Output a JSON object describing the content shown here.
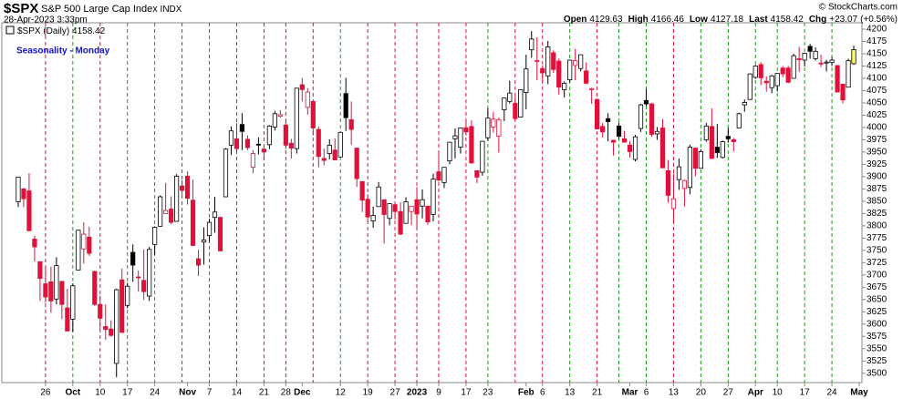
{
  "chart_data": {
    "type": "candlestick",
    "symbol": "$SPX",
    "name": "S&P 500 Large Cap Index",
    "exchange": "INDX",
    "date": "28-Apr-2023 3:33pm",
    "watermark": "© StockCharts.com",
    "title": "Seasonality - Monday",
    "legend": "$SPX (Daily)",
    "ohlc_labels": [
      "Open",
      "High",
      "Low",
      "Last"
    ],
    "change_label": "Chg",
    "change": "+23.07",
    "change_pct": "(+0.56%)",
    "up_color": "#000000",
    "down_color": "#e0103a",
    "highlight_color": "#ffff66",
    "ylim": [
      3481,
      4213
    ],
    "yticks": [
      3500,
      3525,
      3550,
      3575,
      3600,
      3625,
      3650,
      3675,
      3700,
      3725,
      3750,
      3775,
      3800,
      3825,
      3850,
      3875,
      3900,
      3925,
      3950,
      3975,
      4000,
      4025,
      4050,
      4075,
      4100,
      4125,
      4150,
      4175,
      4200
    ],
    "xlim": [
      -3,
      154.5
    ],
    "xticks": [
      {
        "value": 5,
        "label": "26"
      },
      {
        "value": 10,
        "label": "Oct"
      },
      {
        "value": 15,
        "label": "10"
      },
      {
        "value": 20,
        "label": "17"
      },
      {
        "value": 25,
        "label": "24"
      },
      {
        "value": 31,
        "label": "Nov"
      },
      {
        "value": 35,
        "label": "7"
      },
      {
        "value": 40,
        "label": "14"
      },
      {
        "value": 45,
        "label": "21"
      },
      {
        "value": 49,
        "label": "28"
      },
      {
        "value": 52,
        "label": "Dec"
      },
      {
        "value": 59,
        "label": "12"
      },
      {
        "value": 64,
        "label": "19"
      },
      {
        "value": 69,
        "label": "27"
      },
      {
        "value": 73,
        "label": "2023"
      },
      {
        "value": 77,
        "label": "9"
      },
      {
        "value": 82,
        "label": "17"
      },
      {
        "value": 86,
        "label": "23"
      },
      {
        "value": 93,
        "label": "Feb"
      },
      {
        "value": 96,
        "label": "6"
      },
      {
        "value": 101,
        "label": "13"
      },
      {
        "value": 106,
        "label": "21"
      },
      {
        "value": 112,
        "label": "Mar"
      },
      {
        "value": 115,
        "label": "6"
      },
      {
        "value": 120,
        "label": "13"
      },
      {
        "value": 125,
        "label": "20"
      },
      {
        "value": 130,
        "label": "27"
      },
      {
        "value": 135,
        "label": "Apr"
      },
      {
        "value": 139,
        "label": "10"
      },
      {
        "value": 144,
        "label": "17"
      },
      {
        "value": 149,
        "label": "24"
      },
      {
        "value": 154,
        "label": "May"
      }
    ],
    "monday_lines": [
      {
        "value": 5,
        "color": "#e0103a"
      },
      {
        "value": 10,
        "color": "#1a9a1a"
      },
      {
        "value": 15,
        "color": "#e0103a"
      },
      {
        "value": 20,
        "color": "#1a9a1a"
      },
      {
        "value": 25,
        "color": "#1a9a1a"
      },
      {
        "value": 30,
        "color": "#e0103a"
      },
      {
        "value": 35,
        "color": "#1a9a1a"
      },
      {
        "value": 40,
        "color": "#e0103a"
      },
      {
        "value": 45,
        "color": "#e0103a"
      },
      {
        "value": 49,
        "color": "#e0103a"
      },
      {
        "value": 54,
        "color": "#e0103a"
      },
      {
        "value": 59,
        "color": "#1a9a1a"
      },
      {
        "value": 64,
        "color": "#e0103a"
      },
      {
        "value": 69,
        "color": "#e0103a"
      },
      {
        "value": 73,
        "color": "#e0103a"
      },
      {
        "value": 77,
        "color": "#e0103a"
      },
      {
        "value": 82,
        "color": "#e0103a"
      },
      {
        "value": 86,
        "color": "#1a9a1a"
      },
      {
        "value": 91,
        "color": "#e0103a"
      },
      {
        "value": 96,
        "color": "#e0103a"
      },
      {
        "value": 101,
        "color": "#1a9a1a"
      },
      {
        "value": 106,
        "color": "#e0103a"
      },
      {
        "value": 110,
        "color": "#1a9a1a"
      },
      {
        "value": 115,
        "color": "#1a9a1a"
      },
      {
        "value": 120,
        "color": "#e0103a"
      },
      {
        "value": 125,
        "color": "#1a9a1a"
      },
      {
        "value": 130,
        "color": "#1a9a1a"
      },
      {
        "value": 135,
        "color": "#1a9a1a"
      },
      {
        "value": 139,
        "color": "#1a9a1a"
      },
      {
        "value": 144,
        "color": "#1a9a1a"
      },
      {
        "value": 149,
        "color": "#1a9a1a"
      }
    ],
    "candles": [
      [
        3849,
        3900,
        3838,
        3899
      ],
      [
        3875,
        3877,
        3838,
        3855
      ],
      [
        3871,
        3907,
        3789,
        3790
      ],
      [
        3773,
        3780,
        3727,
        3757
      ],
      [
        3727,
        3727,
        3647,
        3693
      ],
      [
        3682,
        3715,
        3644,
        3655
      ],
      [
        3686,
        3717,
        3623,
        3647
      ],
      [
        3651,
        3736,
        3640,
        3719
      ],
      [
        3687,
        3687,
        3610,
        3640
      ],
      [
        3633,
        3672,
        3585,
        3586
      ],
      [
        3610,
        3683,
        3584,
        3678
      ],
      [
        3710,
        3792,
        3710,
        3791
      ],
      [
        3753,
        3807,
        3723,
        3783
      ],
      [
        3777,
        3798,
        3739,
        3744
      ],
      [
        3707,
        3709,
        3637,
        3640
      ],
      [
        3640,
        3658,
        3589,
        3612
      ],
      [
        3595,
        3640,
        3568,
        3589
      ],
      [
        3590,
        3608,
        3574,
        3577
      ],
      [
        3520,
        3672,
        3492,
        3670
      ],
      [
        3690,
        3713,
        3583,
        3583
      ],
      [
        3638,
        3684,
        3632,
        3677
      ],
      [
        3746,
        3762,
        3686,
        3720
      ],
      [
        3696,
        3709,
        3666,
        3695
      ],
      [
        3689,
        3752,
        3649,
        3666
      ],
      [
        3657,
        3757,
        3647,
        3752
      ],
      [
        3762,
        3799,
        3741,
        3797
      ],
      [
        3799,
        3862,
        3799,
        3859
      ],
      [
        3825,
        3887,
        3826,
        3831
      ],
      [
        3834,
        3860,
        3803,
        3807
      ],
      [
        3809,
        3905,
        3808,
        3901
      ],
      [
        3881,
        3893,
        3863,
        3872
      ],
      [
        3901,
        3911,
        3843,
        3856
      ],
      [
        3852,
        3894,
        3759,
        3760
      ],
      [
        3733,
        3751,
        3698,
        3720
      ],
      [
        3767,
        3797,
        3721,
        3771
      ],
      [
        3780,
        3814,
        3767,
        3807
      ],
      [
        3817,
        3859,
        3786,
        3828
      ],
      [
        3817,
        3819,
        3748,
        3749
      ],
      [
        3859,
        3958,
        3859,
        3956
      ],
      [
        3964,
        4002,
        3944,
        3993
      ],
      [
        3977,
        4009,
        3946,
        3957
      ],
      [
        4006,
        4029,
        3954,
        3992
      ],
      [
        3976,
        3984,
        3954,
        3959
      ],
      [
        3919,
        3954,
        3907,
        3947
      ],
      [
        3966,
        3980,
        3945,
        3965
      ],
      [
        3956,
        3962,
        3933,
        3950
      ],
      [
        3965,
        4005,
        3956,
        4003
      ],
      [
        4001,
        4034,
        3994,
        4028
      ],
      [
        4023,
        4035,
        4020,
        4026
      ],
      [
        4005,
        4012,
        3956,
        3964
      ],
      [
        3968,
        3977,
        3937,
        3958
      ],
      [
        3957,
        4080,
        3947,
        4080
      ],
      [
        4087,
        4101,
        4053,
        4077
      ],
      [
        4041,
        4080,
        4026,
        4072
      ],
      [
        4053,
        4053,
        3984,
        3999
      ],
      [
        3996,
        4002,
        3919,
        3941
      ],
      [
        3937,
        3957,
        3923,
        3933
      ],
      [
        3947,
        3976,
        3935,
        3964
      ],
      [
        3954,
        3978,
        3933,
        3934
      ],
      [
        3940,
        3991,
        3939,
        3990
      ],
      [
        4069,
        4101,
        3993,
        4020
      ],
      [
        4016,
        4053,
        3965,
        3996
      ],
      [
        3958,
        3959,
        3879,
        3896
      ],
      [
        3890,
        3890,
        3828,
        3852
      ],
      [
        3854,
        3864,
        3807,
        3818
      ],
      [
        3810,
        3839,
        3796,
        3821
      ],
      [
        3839,
        3889,
        3839,
        3879
      ],
      [
        3853,
        3853,
        3764,
        3823
      ],
      [
        3815,
        3846,
        3801,
        3845
      ],
      [
        3843,
        3846,
        3813,
        3829
      ],
      [
        3829,
        3848,
        3781,
        3783
      ],
      [
        3805,
        3858,
        3805,
        3849
      ],
      [
        3829,
        3840,
        3801,
        3840
      ],
      [
        3853,
        3879,
        3795,
        3824
      ],
      [
        3840,
        3874,
        3815,
        3853
      ],
      [
        3840,
        3840,
        3802,
        3808
      ],
      [
        3823,
        3906,
        3809,
        3895
      ],
      [
        3910,
        3950,
        3890,
        3893
      ],
      [
        3888,
        3919,
        3877,
        3919
      ],
      [
        3932,
        3970,
        3925,
        3970
      ],
      [
        3977,
        3998,
        3937,
        3983
      ],
      [
        3960,
        4000,
        3947,
        3999
      ],
      [
        3999,
        4015,
        3984,
        3991
      ],
      [
        4002,
        4015,
        3926,
        3928
      ],
      [
        3912,
        3913,
        3887,
        3899
      ],
      [
        3909,
        3972,
        3902,
        3972
      ],
      [
        3979,
        4039,
        3973,
        4019
      ],
      [
        4001,
        4032,
        3990,
        4017
      ],
      [
        3982,
        4020,
        3949,
        4016
      ],
      [
        4036,
        4061,
        4013,
        4060
      ],
      [
        4053,
        4095,
        4049,
        4070
      ],
      [
        4049,
        4063,
        4015,
        4018
      ],
      [
        4021,
        4077,
        4021,
        4077
      ],
      [
        4071,
        4148,
        4037,
        4119
      ],
      [
        4158,
        4196,
        4142,
        4180
      ],
      [
        4136,
        4183,
        4096,
        4136
      ],
      [
        4120,
        4126,
        4093,
        4111
      ],
      [
        4105,
        4176,
        4088,
        4164
      ],
      [
        4152,
        4157,
        4111,
        4118
      ],
      [
        4135,
        4140,
        4067,
        4082
      ],
      [
        4077,
        4094,
        4061,
        4090
      ],
      [
        4097,
        4138,
        4092,
        4137
      ],
      [
        4126,
        4160,
        4096,
        4136
      ],
      [
        4120,
        4148,
        4114,
        4148
      ],
      [
        4115,
        4132,
        4088,
        4090
      ],
      [
        4077,
        4081,
        4048,
        4079
      ],
      [
        4057,
        4059,
        3997,
        3997
      ],
      [
        4002,
        4009,
        3980,
        3991
      ],
      [
        4018,
        4029,
        3972,
        4012
      ],
      [
        3974,
        3975,
        3943,
        3970
      ],
      [
        4003,
        4010,
        3977,
        3982
      ],
      [
        3977,
        3993,
        3970,
        3970
      ],
      [
        3964,
        3972,
        3939,
        3951
      ],
      [
        3935,
        3985,
        3931,
        3981
      ],
      [
        3998,
        4048,
        3991,
        4046
      ],
      [
        4055,
        4079,
        4044,
        4048
      ],
      [
        4048,
        4050,
        3981,
        3986
      ],
      [
        3987,
        4001,
        3975,
        3992
      ],
      [
        3999,
        4017,
        3917,
        3918
      ],
      [
        3912,
        3934,
        3847,
        3862
      ],
      [
        3835,
        3906,
        3809,
        3855
      ],
      [
        3894,
        3937,
        3873,
        3920
      ],
      [
        3876,
        3894,
        3839,
        3892
      ],
      [
        3878,
        3965,
        3864,
        3960
      ],
      [
        3958,
        3959,
        3901,
        3917
      ],
      [
        3917,
        3956,
        3917,
        3951
      ],
      [
        3975,
        4009,
        3971,
        4003
      ],
      [
        4002,
        4039,
        3936,
        3937
      ],
      [
        3960,
        4007,
        3938,
        3949
      ],
      [
        3939,
        3973,
        3937,
        3971
      ],
      [
        3982,
        3999,
        3969,
        3977
      ],
      [
        3975,
        3979,
        3951,
        3971
      ],
      [
        3999,
        4030,
        3999,
        4028
      ],
      [
        4046,
        4057,
        4032,
        4051
      ],
      [
        4057,
        4110,
        4056,
        4109
      ],
      [
        4102,
        4127,
        4099,
        4125
      ],
      [
        4128,
        4133,
        4086,
        4101
      ],
      [
        4094,
        4104,
        4073,
        4091
      ],
      [
        4081,
        4107,
        4070,
        4105
      ],
      [
        4085,
        4110,
        4073,
        4110
      ],
      [
        4121,
        4125,
        4102,
        4109
      ],
      [
        4121,
        4125,
        4090,
        4092
      ],
      [
        4100,
        4150,
        4100,
        4146
      ],
      [
        4140,
        4164,
        4113,
        4138
      ],
      [
        4137,
        4152,
        4124,
        4151
      ],
      [
        4165,
        4170,
        4140,
        4155
      ],
      [
        4140,
        4163,
        4136,
        4155
      ],
      [
        4131,
        4148,
        4123,
        4130
      ],
      [
        4132,
        4138,
        4114,
        4133
      ],
      [
        4132,
        4143,
        4125,
        4137
      ],
      [
        4126,
        4127,
        4072,
        4072
      ],
      [
        4088,
        4089,
        4049,
        4056
      ],
      [
        4082,
        4140,
        4082,
        4136
      ],
      [
        4129.63,
        4166.46,
        4127.18,
        4158.42
      ]
    ]
  }
}
